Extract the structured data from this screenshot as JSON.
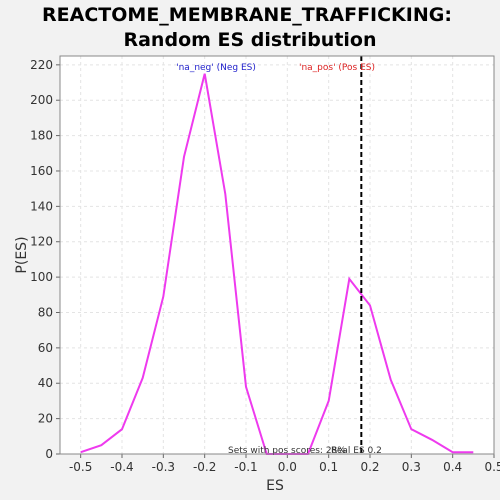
{
  "chart_data": {
    "type": "line",
    "title_line1": "REACTOME_MEMBRANE_TRAFFICKING:",
    "title_line2": "Random ES distribution",
    "xlabel": "ES",
    "ylabel": "P(ES)",
    "xlim": [
      -0.55,
      0.5
    ],
    "ylim": [
      0,
      225
    ],
    "xticks": [
      -0.5,
      -0.4,
      -0.3,
      -0.2,
      -0.1,
      0.0,
      0.1,
      0.2,
      0.3,
      0.4,
      0.5
    ],
    "xtick_labels": [
      "-0.5",
      "-0.4",
      "-0.3",
      "-0.2",
      "-0.1",
      "0.0",
      "0.1",
      "0.2",
      "0.3",
      "0.4",
      "0.5"
    ],
    "yticks": [
      0,
      20,
      40,
      60,
      80,
      100,
      120,
      140,
      160,
      180,
      200,
      220
    ],
    "ytick_labels": [
      "0",
      "20",
      "40",
      "60",
      "80",
      "100",
      "120",
      "140",
      "160",
      "180",
      "200",
      "220"
    ],
    "grid": true,
    "line_color": "#ee3aee",
    "series": [
      {
        "x": [
          -0.5,
          -0.45,
          -0.4,
          -0.35,
          -0.3,
          -0.25,
          -0.2,
          -0.15,
          -0.1,
          -0.05,
          0.0,
          0.05,
          0.1,
          0.15,
          0.2,
          0.25,
          0.3,
          0.35,
          0.4,
          0.45
        ],
        "y": [
          1,
          5,
          14,
          43,
          89,
          168,
          215,
          147,
          38,
          0,
          0,
          0,
          30,
          99,
          84,
          42,
          14,
          8,
          1,
          1
        ]
      }
    ],
    "vline": {
      "x": 0.179,
      "style": "dashed",
      "color": "#000000"
    },
    "annotations": {
      "neg_label": "'na_neg' (Neg ES)",
      "neg_color": "#2222cc",
      "pos_label": "'na_pos' (Pos ES)",
      "pos_color": "#dd2222",
      "bottom_left": "Sets with pos scores: 28%",
      "bottom_right": "Real ES 0.2"
    }
  }
}
